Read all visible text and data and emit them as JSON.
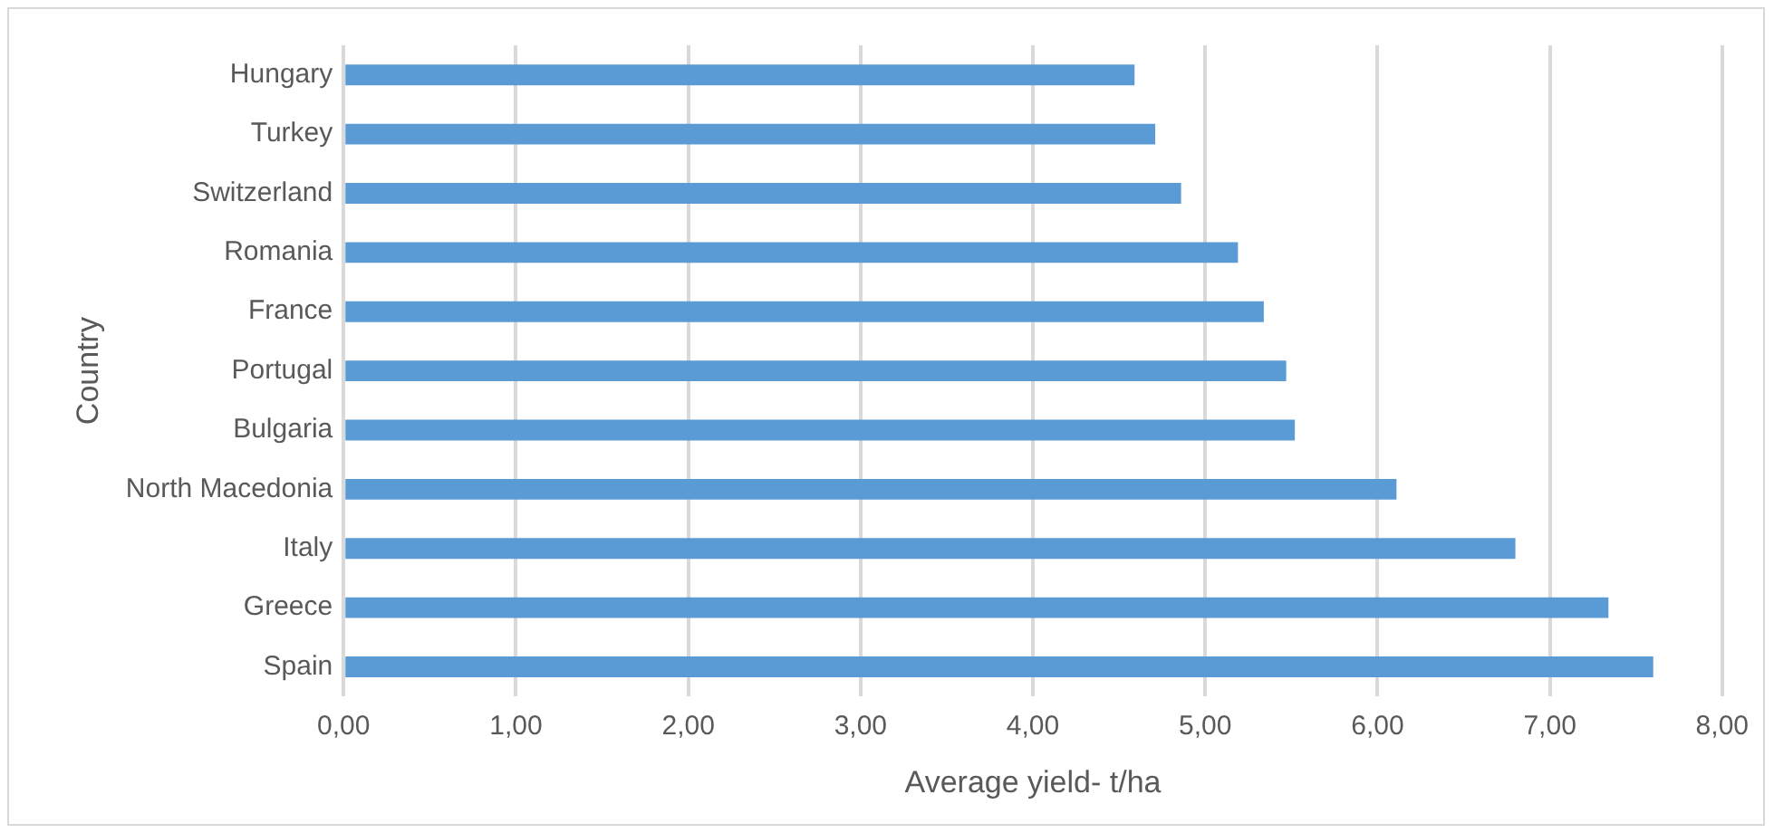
{
  "chart_data": {
    "type": "bar",
    "orientation": "horizontal",
    "xlabel": "Average yield- t/ha",
    "ylabel": "Country",
    "categories": [
      "Hungary",
      "Turkey",
      "Switzerland",
      "Romania",
      "France",
      "Portugal",
      "Bulgaria",
      "North Macedonia",
      "Italy",
      "Greece",
      "Spain"
    ],
    "values": [
      4.59,
      4.71,
      4.86,
      5.19,
      5.34,
      5.47,
      5.52,
      6.11,
      6.8,
      7.34,
      7.6
    ],
    "color": "#5b9bd5",
    "xlim": [
      0,
      8
    ],
    "xticks": [
      {
        "value": 0,
        "label": "0,00"
      },
      {
        "value": 1,
        "label": "1,00"
      },
      {
        "value": 2,
        "label": "2,00"
      },
      {
        "value": 3,
        "label": "3,00"
      },
      {
        "value": 4,
        "label": "4,00"
      },
      {
        "value": 5,
        "label": "5,00"
      },
      {
        "value": 6,
        "label": "6,00"
      },
      {
        "value": 7,
        "label": "7,00"
      },
      {
        "value": 8,
        "label": "8,00"
      }
    ],
    "grid": "x",
    "legend": false
  }
}
